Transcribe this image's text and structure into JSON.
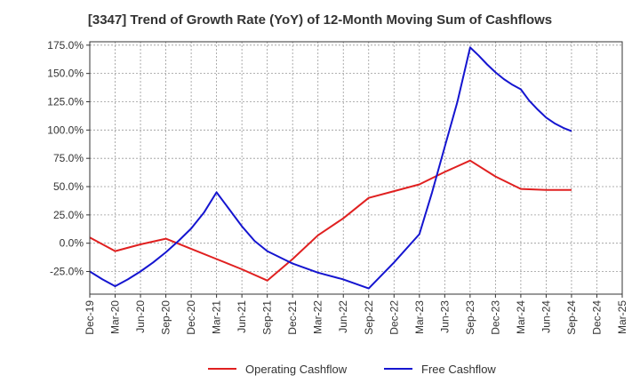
{
  "chart_data": {
    "type": "line",
    "title": "[3347]  Trend of Growth Rate (YoY) of 12-Month Moving Sum of Cashflows",
    "xlabel": "",
    "ylabel": "",
    "categories": [
      "Dec-19",
      "Mar-20",
      "Jun-20",
      "Sep-20",
      "Dec-20",
      "Mar-21",
      "Jun-21",
      "Sep-21",
      "Dec-21",
      "Mar-22",
      "Jun-22",
      "Sep-22",
      "Dec-22",
      "Mar-23",
      "Jun-23",
      "Sep-23",
      "Dec-23",
      "Mar-24",
      "Jun-24",
      "Sep-24",
      "Dec-24",
      "Mar-25"
    ],
    "y_ticks": [
      "175.0%",
      "150.0%",
      "125.0%",
      "100.0%",
      "75.0%",
      "50.0%",
      "25.0%",
      "0.0%",
      "-25.0%"
    ],
    "ylim": [
      -45,
      178
    ],
    "grid": true,
    "legend_position": "bottom",
    "series": [
      {
        "name": "Operating Cashflow",
        "color": "#e02020",
        "x": [
          0,
          1,
          2,
          3,
          4,
          5,
          6,
          7,
          8,
          9,
          10,
          11,
          12,
          13,
          14,
          15,
          16,
          17,
          18,
          19
        ],
        "values": [
          5,
          -7,
          -1,
          4,
          -5,
          -14,
          -23,
          -33,
          -14,
          7,
          22,
          40,
          46,
          52,
          63,
          73,
          59,
          48,
          47,
          47
        ]
      },
      {
        "name": "Free Cashflow",
        "color": "#1515d0",
        "x": [
          0,
          0.5,
          1,
          1.5,
          2,
          2.5,
          3,
          3.5,
          4,
          4.5,
          5,
          5.5,
          6,
          6.5,
          7,
          8,
          9,
          10,
          11,
          12,
          13,
          13.5,
          14,
          14.5,
          15,
          15.33,
          15.67,
          16,
          16.33,
          16.67,
          17,
          17.33,
          17.67,
          18,
          18.33,
          18.67,
          19
        ],
        "values": [
          -25,
          -32,
          -38,
          -32,
          -25,
          -17,
          -8,
          2,
          13,
          27,
          45,
          30,
          15,
          2,
          -7,
          -18,
          -26,
          -32,
          -40,
          -17,
          8,
          45,
          85,
          125,
          173,
          166,
          158,
          151,
          145,
          140,
          136,
          126,
          118,
          111,
          106,
          102,
          99
        ]
      }
    ]
  }
}
